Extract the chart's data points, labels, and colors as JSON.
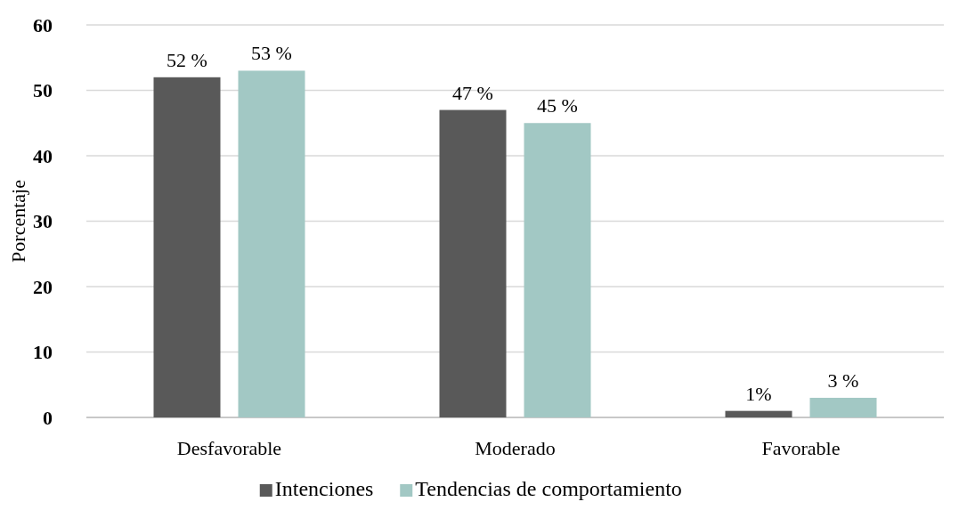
{
  "chart_data": {
    "type": "bar",
    "ylabel": "Porcentaje",
    "categories": [
      "Desfavorable",
      "Moderado",
      "Favorable"
    ],
    "series": [
      {
        "name": "Intenciones",
        "color": "#595959",
        "values": [
          52,
          47,
          1
        ],
        "value_labels": [
          "52 %",
          "47 %",
          "1%"
        ]
      },
      {
        "name": "Tendencias de comportamiento",
        "color": "#a2c8c4",
        "values": [
          53,
          45,
          3
        ],
        "value_labels": [
          "53 %",
          "45 %",
          "3 %"
        ]
      }
    ],
    "ylim": [
      0,
      60
    ],
    "yticks": [
      0,
      10,
      20,
      30,
      40,
      50,
      60
    ],
    "grid": "y",
    "legend": "bottom"
  }
}
